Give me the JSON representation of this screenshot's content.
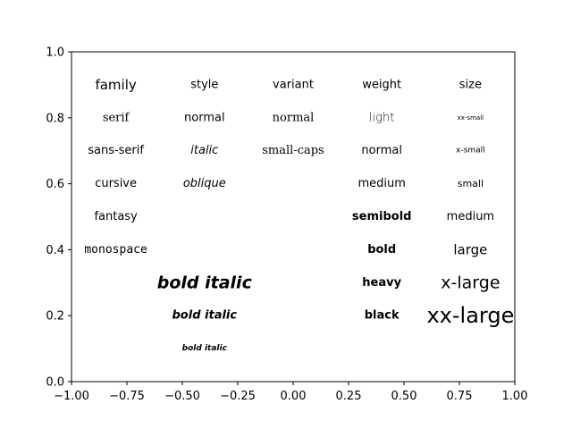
{
  "chart_data": {
    "type": "text",
    "title": "",
    "xlabel": "",
    "ylabel": "",
    "xlim": [
      -1.0,
      1.0
    ],
    "ylim": [
      0.0,
      1.0
    ],
    "grid": false,
    "xticks": [
      -1.0,
      -0.75,
      -0.5,
      -0.25,
      0.0,
      0.25,
      0.5,
      0.75,
      1.0
    ],
    "xtick_labels": [
      "−1.00",
      "−0.75",
      "−0.50",
      "−0.25",
      "0.00",
      "0.25",
      "0.50",
      "0.75",
      "1.00"
    ],
    "yticks": [
      0.0,
      0.2,
      0.4,
      0.6,
      0.8,
      1.0
    ],
    "ytick_labels": [
      "0.0",
      "0.2",
      "0.4",
      "0.6",
      "0.8",
      "1.0"
    ],
    "texts": [
      {
        "x": -0.8,
        "y": 0.9,
        "text": "family",
        "family": "sans",
        "size": "large"
      },
      {
        "x": -0.8,
        "y": 0.8,
        "text": "serif",
        "family": "serif"
      },
      {
        "x": -0.8,
        "y": 0.7,
        "text": "sans-serif",
        "family": "sans"
      },
      {
        "x": -0.8,
        "y": 0.6,
        "text": "cursive",
        "family": "sans"
      },
      {
        "x": -0.8,
        "y": 0.5,
        "text": "fantasy",
        "family": "sans"
      },
      {
        "x": -0.8,
        "y": 0.4,
        "text": "monospace",
        "family": "mono"
      },
      {
        "x": -0.4,
        "y": 0.9,
        "text": "style",
        "family": "sans"
      },
      {
        "x": -0.4,
        "y": 0.8,
        "text": "normal",
        "family": "sans"
      },
      {
        "x": -0.4,
        "y": 0.7,
        "text": "italic",
        "family": "sans",
        "style": "italic"
      },
      {
        "x": -0.4,
        "y": 0.6,
        "text": "oblique",
        "family": "sans",
        "style": "oblique"
      },
      {
        "x": 0.0,
        "y": 0.9,
        "text": "variant",
        "family": "sans"
      },
      {
        "x": 0.0,
        "y": 0.8,
        "text": "normal",
        "family": "serif"
      },
      {
        "x": 0.0,
        "y": 0.7,
        "text": "small-caps",
        "family": "serif"
      },
      {
        "x": 0.4,
        "y": 0.9,
        "text": "weight",
        "family": "sans"
      },
      {
        "x": 0.4,
        "y": 0.8,
        "text": "light",
        "family": "sans",
        "weight": "300"
      },
      {
        "x": 0.4,
        "y": 0.7,
        "text": "normal",
        "family": "sans"
      },
      {
        "x": 0.4,
        "y": 0.6,
        "text": "medium",
        "family": "sans"
      },
      {
        "x": 0.4,
        "y": 0.5,
        "text": "semibold",
        "family": "sans",
        "weight": "bold"
      },
      {
        "x": 0.4,
        "y": 0.4,
        "text": "bold",
        "family": "sans",
        "weight": "bold"
      },
      {
        "x": 0.4,
        "y": 0.3,
        "text": "heavy",
        "family": "sans",
        "weight": "bold"
      },
      {
        "x": 0.4,
        "y": 0.2,
        "text": "black",
        "family": "sans",
        "weight": "bold"
      },
      {
        "x": 0.8,
        "y": 0.9,
        "text": "size",
        "family": "sans"
      },
      {
        "x": 0.8,
        "y": 0.8,
        "text": "xx-small",
        "family": "sans",
        "size": "xx-small"
      },
      {
        "x": 0.8,
        "y": 0.7,
        "text": "x-small",
        "family": "sans",
        "size": "x-small"
      },
      {
        "x": 0.8,
        "y": 0.6,
        "text": "small",
        "family": "sans",
        "size": "small"
      },
      {
        "x": 0.8,
        "y": 0.5,
        "text": "medium",
        "family": "sans",
        "size": "medium"
      },
      {
        "x": 0.8,
        "y": 0.4,
        "text": "large",
        "family": "sans",
        "size": "large"
      },
      {
        "x": 0.8,
        "y": 0.3,
        "text": "x-large",
        "family": "sans",
        "size": "x-large"
      },
      {
        "x": 0.8,
        "y": 0.2,
        "text": "xx-large",
        "family": "sans",
        "size": "xx-large"
      },
      {
        "x": -0.4,
        "y": 0.3,
        "text": "bold italic",
        "family": "sans",
        "weight": "bold",
        "style": "italic",
        "size": "x-large"
      },
      {
        "x": -0.4,
        "y": 0.2,
        "text": "bold italic",
        "family": "sans",
        "weight": "bold",
        "style": "italic",
        "size": "medium"
      },
      {
        "x": -0.4,
        "y": 0.1,
        "text": "bold italic",
        "family": "sans",
        "weight": "bold",
        "style": "italic",
        "size": "x-small"
      }
    ]
  }
}
